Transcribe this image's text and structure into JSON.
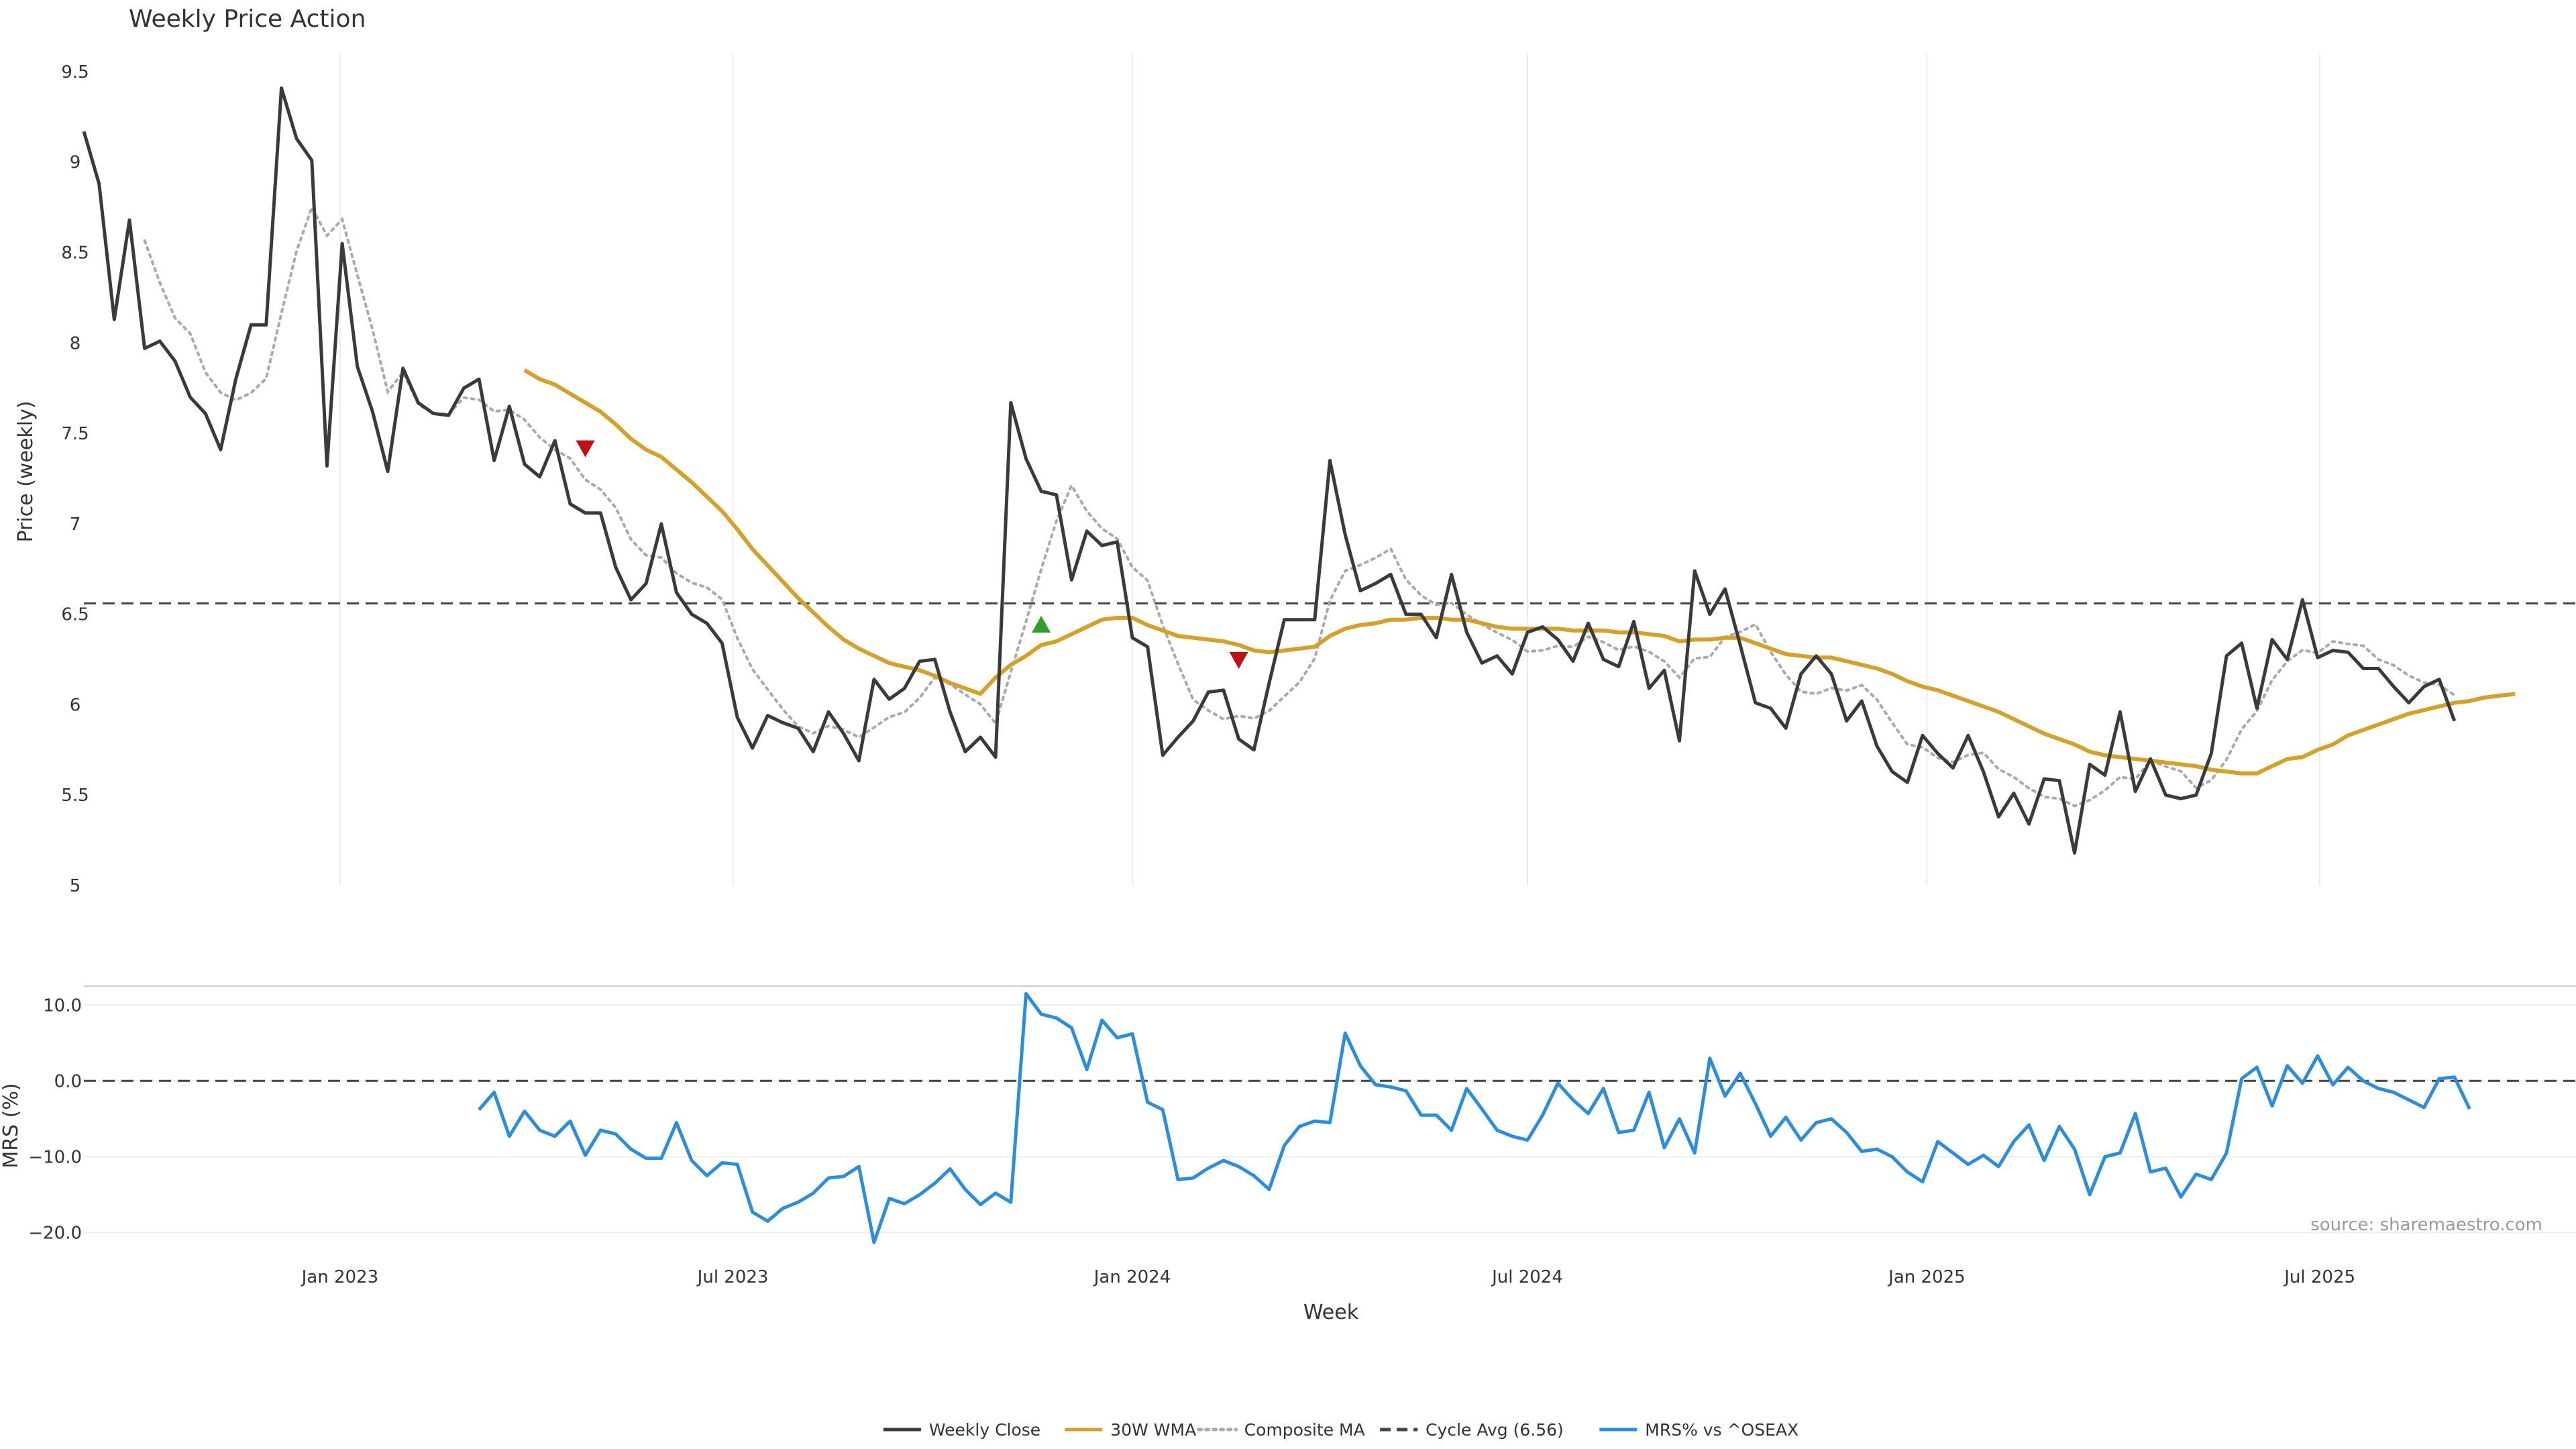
{
  "chart_data": {
    "type": "line",
    "title": "Weekly Price Action",
    "source_label": "source: sharemaestro.com",
    "xlabel": "Week",
    "x_start": "2022-09-05",
    "x_end": "2025-10-27",
    "x_ticks": [
      {
        "date": "2023-01-01",
        "label": "Jan 2023"
      },
      {
        "date": "2023-07-01",
        "label": "Jul 2023"
      },
      {
        "date": "2024-01-01",
        "label": "Jan 2024"
      },
      {
        "date": "2024-07-01",
        "label": "Jul 2024"
      },
      {
        "date": "2025-01-01",
        "label": "Jan 2025"
      },
      {
        "date": "2025-07-01",
        "label": "Jul 2025"
      }
    ],
    "price_panel": {
      "ylabel": "Price (weekly)",
      "ylim": [
        5,
        9.6
      ],
      "yticks": [
        5,
        5.5,
        6,
        6.5,
        7,
        7.5,
        8,
        8.5,
        9,
        9.5
      ],
      "ytick_labels": [
        "5",
        "5.5",
        "6",
        "6.5",
        "7",
        "7.5",
        "8",
        "8.5",
        "9",
        "9.5"
      ],
      "grid": "vertical",
      "cycle_avg": 6.56,
      "weekly_close": [
        9.17,
        8.88,
        8.13,
        8.68,
        7.97,
        8.01,
        7.9,
        7.7,
        7.61,
        7.41,
        7.8,
        8.1,
        8.1,
        9.41,
        9.13,
        9.01,
        7.32,
        8.55,
        7.87,
        7.62,
        7.29,
        7.86,
        7.67,
        7.61,
        7.6,
        7.75,
        7.8,
        7.35,
        7.65,
        7.33,
        7.26,
        7.46,
        7.11,
        7.06,
        7.06,
        6.76,
        6.58,
        6.67,
        7.0,
        6.62,
        6.5,
        6.45,
        6.34,
        5.93,
        5.76,
        5.94,
        5.9,
        5.87,
        5.74,
        5.96,
        5.84,
        5.69,
        6.14,
        6.03,
        6.09,
        6.24,
        6.25,
        5.96,
        5.74,
        5.82,
        5.71,
        7.67,
        7.36,
        7.18,
        7.16,
        6.69,
        6.96,
        6.88,
        6.9,
        6.37,
        6.32,
        5.72,
        5.82,
        5.91,
        6.07,
        6.08,
        5.81,
        5.75,
        6.12,
        6.47,
        6.47,
        6.47,
        7.35,
        6.94,
        6.63,
        6.67,
        6.72,
        6.5,
        6.5,
        6.37,
        6.72,
        6.4,
        6.23,
        6.27,
        6.17,
        6.4,
        6.43,
        6.36,
        6.24,
        6.45,
        6.25,
        6.21,
        6.46,
        6.09,
        6.19,
        5.8,
        6.74,
        6.5,
        6.64,
        6.33,
        6.01,
        5.98,
        5.87,
        6.17,
        6.27,
        6.17,
        5.91,
        6.02,
        5.77,
        5.63,
        5.57,
        5.83,
        5.73,
        5.65,
        5.83,
        5.63,
        5.38,
        5.51,
        5.34,
        5.59,
        5.58,
        5.18,
        5.67,
        5.61,
        5.96,
        5.52,
        5.7,
        5.5,
        5.48,
        5.5,
        5.73,
        6.27,
        6.34,
        5.98,
        6.36,
        6.25,
        6.58,
        6.26,
        6.3,
        6.29,
        6.2,
        6.2,
        6.1,
        6.01,
        6.1,
        6.14,
        5.91
      ],
      "wma_30w": [
        null,
        null,
        null,
        null,
        null,
        null,
        null,
        null,
        null,
        null,
        null,
        null,
        null,
        null,
        null,
        null,
        null,
        null,
        null,
        null,
        null,
        null,
        null,
        null,
        null,
        null,
        null,
        null,
        null,
        7.85,
        7.8,
        7.77,
        7.72,
        7.67,
        7.62,
        7.55,
        7.47,
        7.41,
        7.37,
        7.3,
        7.23,
        7.15,
        7.07,
        6.97,
        6.86,
        6.77,
        6.68,
        6.59,
        6.51,
        6.43,
        6.36,
        6.31,
        6.27,
        6.23,
        6.21,
        6.19,
        6.16,
        6.12,
        6.09,
        6.06,
        6.15,
        6.22,
        6.27,
        6.33,
        6.35,
        6.39,
        6.43,
        6.47,
        6.48,
        6.48,
        6.44,
        6.41,
        6.38,
        6.37,
        6.36,
        6.35,
        6.33,
        6.3,
        6.29,
        6.3,
        6.31,
        6.32,
        6.38,
        6.42,
        6.44,
        6.45,
        6.47,
        6.47,
        6.48,
        6.48,
        6.47,
        6.47,
        6.45,
        6.43,
        6.42,
        6.42,
        6.42,
        6.42,
        6.41,
        6.41,
        6.41,
        6.4,
        6.4,
        6.39,
        6.38,
        6.35,
        6.36,
        6.36,
        6.37,
        6.37,
        6.34,
        6.31,
        6.28,
        6.27,
        6.26,
        6.26,
        6.24,
        6.22,
        6.2,
        6.17,
        6.13,
        6.1,
        6.08,
        6.05,
        6.02,
        5.99,
        5.96,
        5.92,
        5.88,
        5.84,
        5.81,
        5.78,
        5.74,
        5.72,
        5.71,
        5.7,
        5.69,
        5.68,
        5.67,
        5.66,
        5.64,
        5.63,
        5.62,
        5.62,
        5.66,
        5.7,
        5.71,
        5.75,
        5.78,
        5.83,
        5.86,
        5.89,
        5.92,
        5.95,
        5.97,
        5.99,
        6.01,
        6.02,
        6.04,
        6.05,
        6.06
      ]
    },
    "markers": [
      {
        "index": 33,
        "value": 7.42,
        "shape": "down",
        "color": "#c0101a"
      },
      {
        "index": 63,
        "value": 6.44,
        "shape": "up",
        "color": "#2ca02c"
      },
      {
        "index": 76,
        "value": 6.25,
        "shape": "down",
        "color": "#c0101a"
      }
    ],
    "mrs_panel": {
      "ylabel": "MRS (%)",
      "ylim": [
        -22,
        12.5
      ],
      "yticks": [
        -20,
        -10,
        0,
        10
      ],
      "ytick_labels": [
        "−20.0",
        "−10.0",
        "0.0",
        "10.0"
      ],
      "zero_line": 0,
      "values": [
        null,
        null,
        null,
        null,
        null,
        null,
        null,
        null,
        null,
        null,
        null,
        null,
        null,
        null,
        null,
        null,
        null,
        null,
        null,
        null,
        null,
        null,
        null,
        null,
        null,
        null,
        -3.8,
        -1.5,
        -7.3,
        -4.0,
        -6.5,
        -7.3,
        -5.3,
        -9.8,
        -6.5,
        -7.0,
        -9.0,
        -10.2,
        -10.2,
        -5.5,
        -10.5,
        -12.5,
        -10.8,
        -11.0,
        -17.3,
        -18.5,
        -16.8,
        -16.0,
        -14.8,
        -12.8,
        -12.6,
        -11.3,
        -21.3,
        -15.5,
        -16.2,
        -15.0,
        -13.5,
        -11.6,
        -14.3,
        -16.3,
        -14.8,
        -16.0,
        11.5,
        8.8,
        8.3,
        7.0,
        1.5,
        8.0,
        5.7,
        6.2,
        -2.8,
        -3.8,
        -13.0,
        -12.8,
        -11.5,
        -10.5,
        -11.3,
        -12.5,
        -14.3,
        -8.5,
        -6.0,
        -5.3,
        -5.5,
        6.3,
        2.0,
        -0.5,
        -0.8,
        -1.3,
        -4.5,
        -4.5,
        -6.5,
        -1.0,
        -3.7,
        -6.5,
        -7.3,
        -7.8,
        -4.5,
        -0.3,
        -2.5,
        -4.3,
        -1.0,
        -6.8,
        -6.5,
        -1.5,
        -8.8,
        -5.0,
        -9.5,
        3.0,
        -2.0,
        1.0,
        -3.0,
        -7.3,
        -4.8,
        -7.8,
        -5.5,
        -5.0,
        -6.8,
        -9.3,
        -9.0,
        -10.0,
        -12.0,
        -13.3,
        -8.0,
        -9.5,
        -11.0,
        -9.8,
        -11.3,
        -8.0,
        -5.8,
        -10.5,
        -6.0,
        -9.0,
        -15.0,
        -10.0,
        -9.5,
        -4.3,
        -12.0,
        -11.5,
        -15.3,
        -12.3,
        -13.0,
        -9.5,
        0.3,
        1.8,
        -3.3,
        2.0,
        -0.3,
        3.3,
        -0.5,
        1.8,
        0.0,
        -1.0,
        -1.5,
        -2.5,
        -3.5,
        0.3,
        0.5,
        -3.7
      ]
    },
    "legend": {
      "placement": "bottom-center",
      "entries": [
        {
          "label": "Weekly Close",
          "color": "#3a3a3a",
          "style": "solid"
        },
        {
          "label": "30W WMA",
          "color": "#d4a12a",
          "style": "solid"
        },
        {
          "label": "Composite MA",
          "color": "#aaaaaa",
          "style": "dotted"
        },
        {
          "label": "Cycle Avg (6.56)",
          "color": "#444444",
          "style": "dashed"
        },
        {
          "label": "MRS% vs ^OSEAX",
          "color": "#2b8ddb",
          "style": "solid"
        }
      ]
    },
    "colors": {
      "close": "#3a3a3a",
      "wma": "#d4a12a",
      "composite": "#aaaaaa",
      "cycle": "#444444",
      "mrs": "#2b8ddb",
      "grid": "#ececec",
      "separator": "#cccccc"
    }
  }
}
